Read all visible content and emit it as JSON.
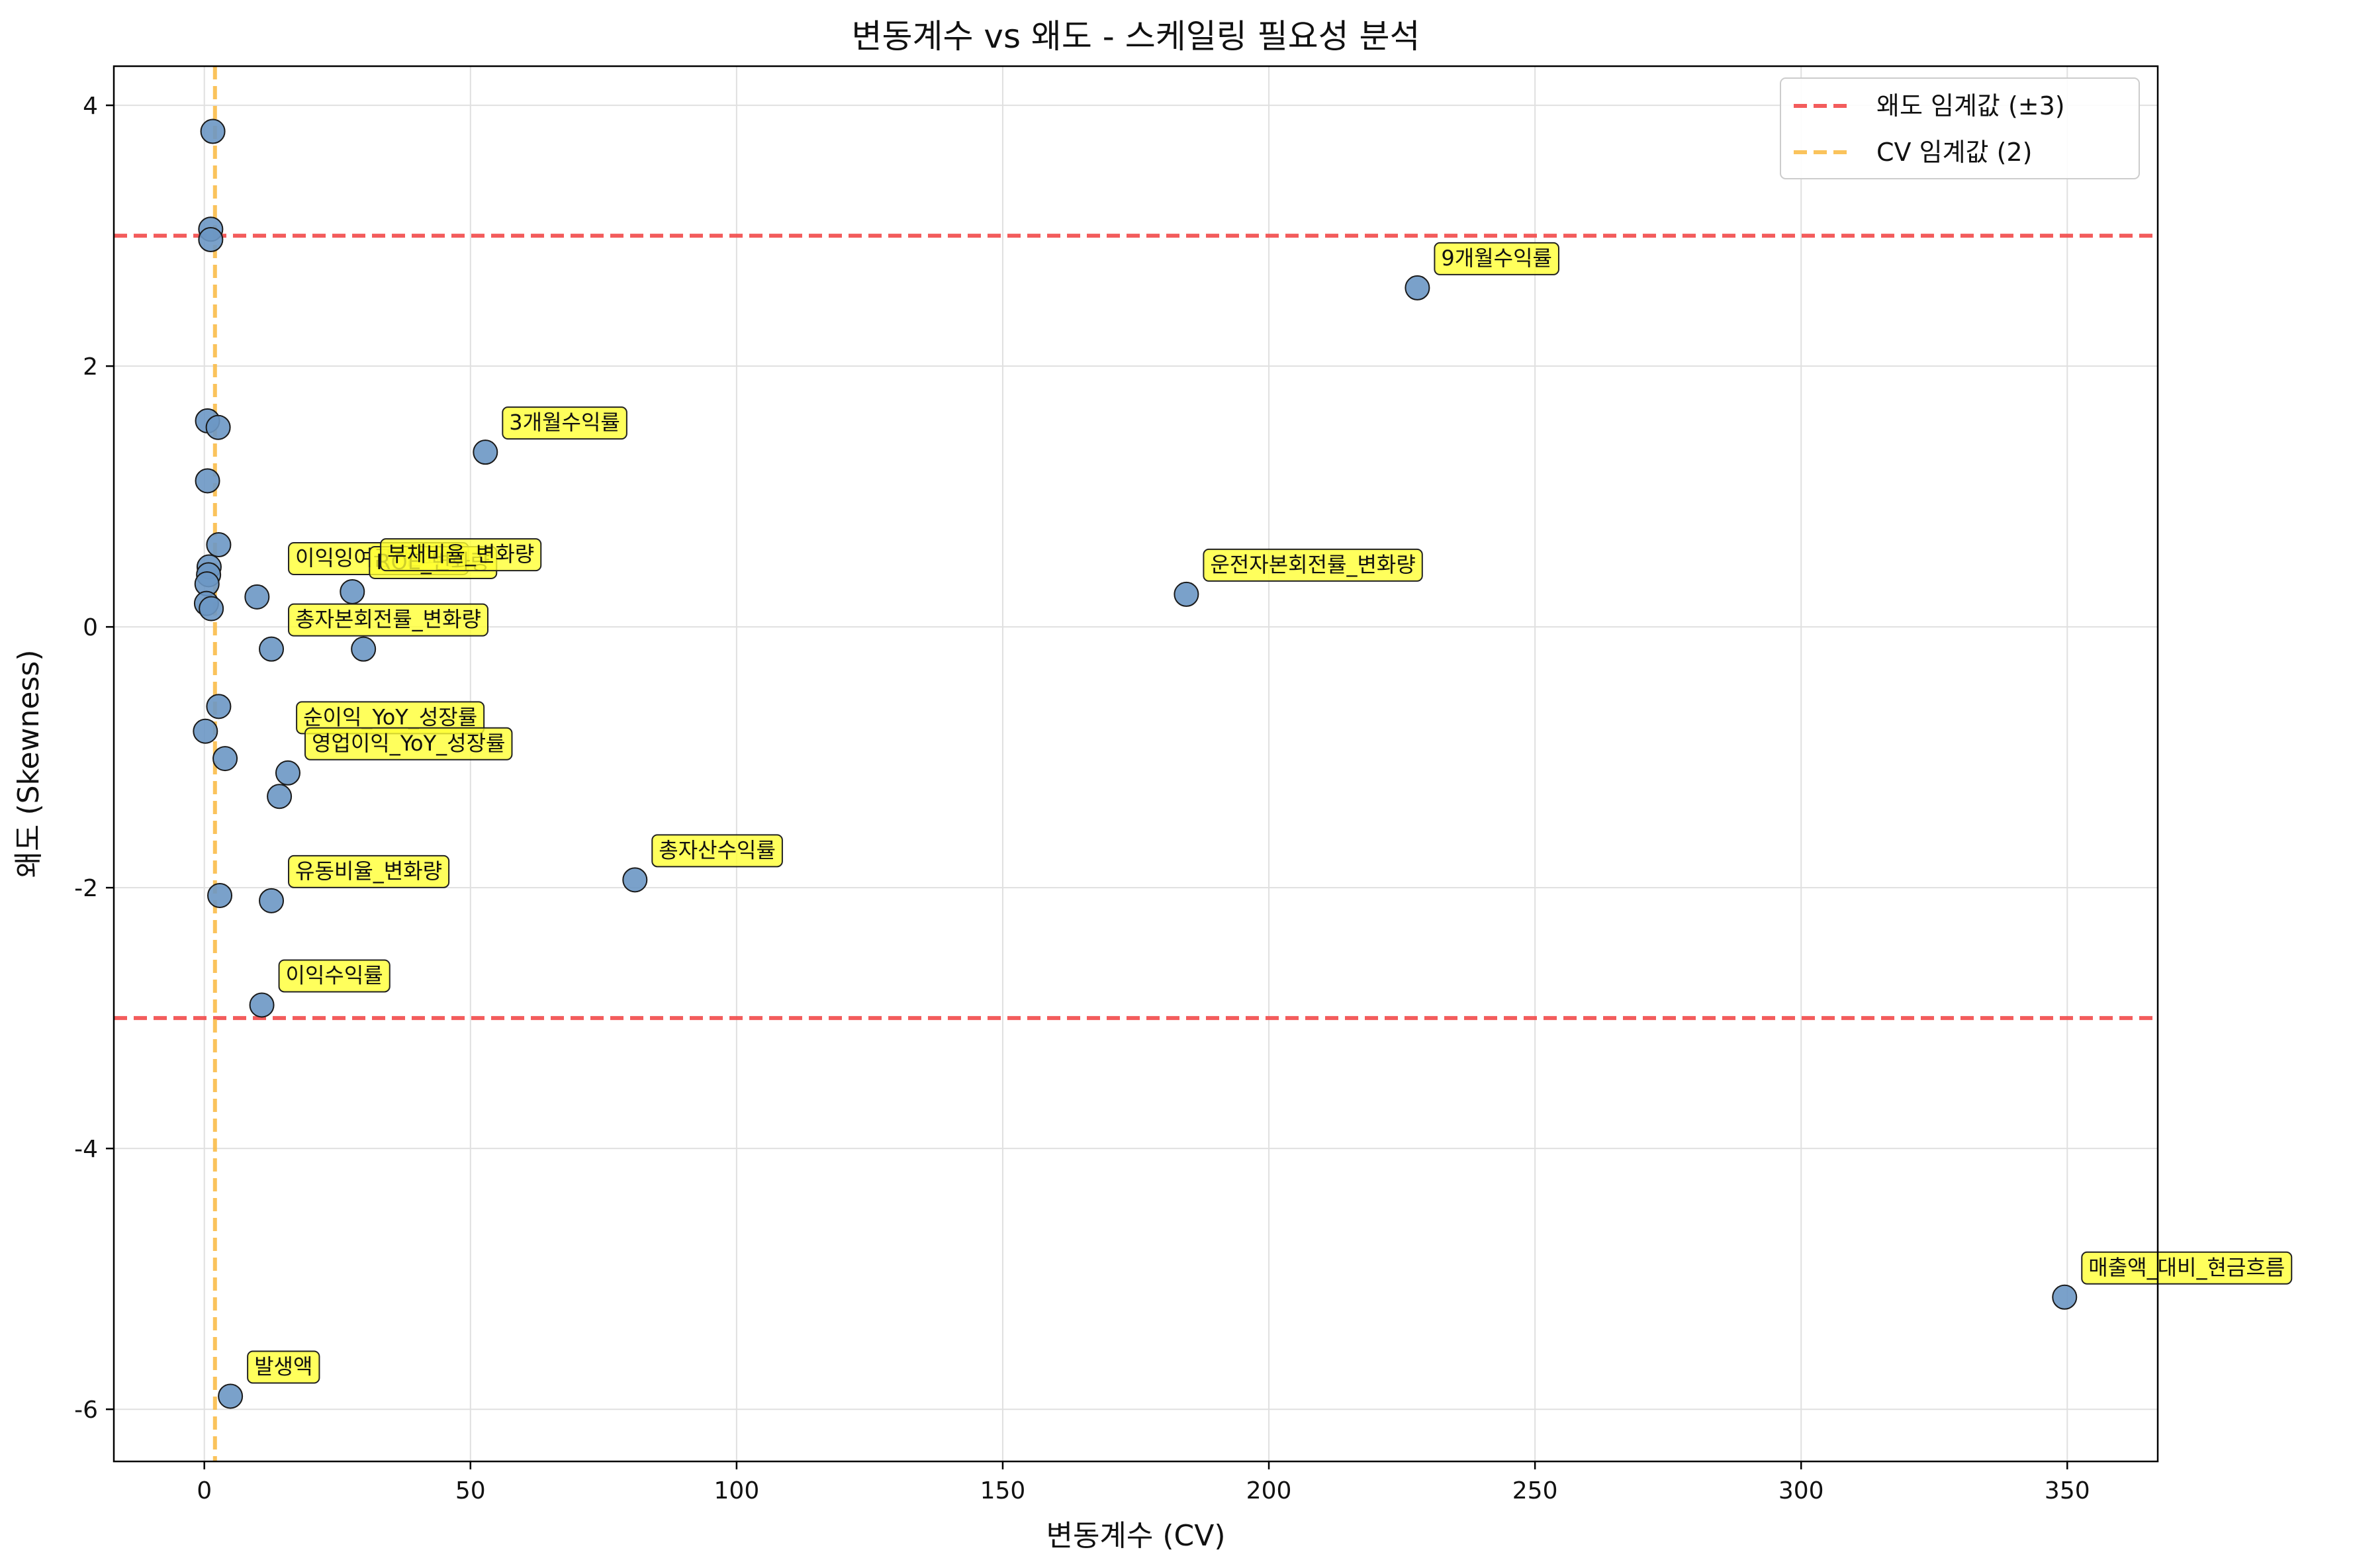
{
  "chart_data": {
    "type": "scatter",
    "title": "변동계수 vs 왜도 - 스케일링 필요성 분석",
    "xlabel": "변동계수 (CV)",
    "ylabel": "왜도 (Skewness)",
    "xlim": [
      -17,
      367
    ],
    "ylim": [
      -6.4,
      4.3
    ],
    "xticks": [
      0,
      50,
      100,
      150,
      200,
      250,
      300,
      350
    ],
    "yticks": [
      -6,
      -4,
      -2,
      0,
      2,
      4
    ],
    "xtick_labels": [
      "0",
      "50",
      "100",
      "150",
      "200",
      "250",
      "300",
      "350"
    ],
    "ytick_labels": [
      "-6",
      "-4",
      "-2",
      "0",
      "2",
      "4"
    ],
    "grid": true,
    "legend_position": "top-right",
    "colors": {
      "points": "#6b97c4",
      "point_edge": "#1a1a1a",
      "skew_threshold": "#f24a4a",
      "cv_threshold": "#f9bd4a",
      "annotation_fill": "#ffff33",
      "grid": "#e0e0e0"
    },
    "thresholds": {
      "skew": [
        3,
        -3
      ],
      "cv": 2
    },
    "legend": [
      {
        "label": "왜도 임계값 (±3)",
        "color": "#f24a4a",
        "style": "dashed"
      },
      {
        "label": "CV 임계값 (2)",
        "color": "#f9bd4a",
        "style": "dashed"
      }
    ],
    "points": [
      {
        "x": 1.6,
        "y": 3.8
      },
      {
        "x": 1.2,
        "y": 3.05
      },
      {
        "x": 1.2,
        "y": 2.97
      },
      {
        "x": 0.6,
        "y": 1.58
      },
      {
        "x": 2.6,
        "y": 1.53
      },
      {
        "x": 0.6,
        "y": 1.12
      },
      {
        "x": 2.7,
        "y": 0.63
      },
      {
        "x": 0.9,
        "y": 0.46
      },
      {
        "x": 0.8,
        "y": 0.4
      },
      {
        "x": 0.5,
        "y": 0.33
      },
      {
        "x": 0.4,
        "y": 0.18
      },
      {
        "x": 1.3,
        "y": 0.14
      },
      {
        "x": 0.2,
        "y": -0.8
      },
      {
        "x": 2.7,
        "y": -0.61
      },
      {
        "x": 3.9,
        "y": -1.01
      },
      {
        "x": 2.9,
        "y": -2.06
      },
      {
        "x": 9.9,
        "y": 0.23
      },
      {
        "x": 27.8,
        "y": 0.27
      },
      {
        "x": 12.6,
        "y": -0.17
      },
      {
        "x": 29.9,
        "y": -0.17
      },
      {
        "x": 15.7,
        "y": -1.12
      },
      {
        "x": 14.1,
        "y": -1.3
      },
      {
        "x": 12.6,
        "y": -2.1
      },
      {
        "x": 10.8,
        "y": -2.9
      },
      {
        "x": 4.9,
        "y": -5.9
      },
      {
        "x": 52.8,
        "y": 1.34
      },
      {
        "x": 80.9,
        "y": -1.94
      },
      {
        "x": 184.5,
        "y": 0.25
      },
      {
        "x": 227.9,
        "y": 2.6
      },
      {
        "x": 349.5,
        "y": -5.14
      }
    ],
    "annotations": [
      {
        "text": "9개월수익률",
        "x": 227.9,
        "y": 2.6
      },
      {
        "text": "3개월수익률",
        "x": 52.8,
        "y": 1.34
      },
      {
        "text": "이익잉여금_변화량",
        "x": 12.6,
        "y": 0.3
      },
      {
        "text": "ROE_변화량",
        "x": 27.8,
        "y": 0.27
      },
      {
        "text": "부채비율_변화량",
        "x": 29.9,
        "y": 0.33
      },
      {
        "text": "운전자본회전률_변화량",
        "x": 184.5,
        "y": 0.25
      },
      {
        "text": "총자본회전률_변화량",
        "x": 12.6,
        "y": -0.17
      },
      {
        "text": "순이익_YoY_성장률",
        "x": 14.1,
        "y": -0.92
      },
      {
        "text": "영업이익_YoY_성장률",
        "x": 15.7,
        "y": -1.12
      },
      {
        "text": "총자산수익률",
        "x": 80.9,
        "y": -1.94
      },
      {
        "text": "유동비율_변화량",
        "x": 12.6,
        "y": -2.1
      },
      {
        "text": "이익수익률",
        "x": 10.8,
        "y": -2.9
      },
      {
        "text": "발생액",
        "x": 4.9,
        "y": -5.9
      },
      {
        "text": "매출액_대비_현금흐름",
        "x": 349.5,
        "y": -5.14
      }
    ]
  }
}
